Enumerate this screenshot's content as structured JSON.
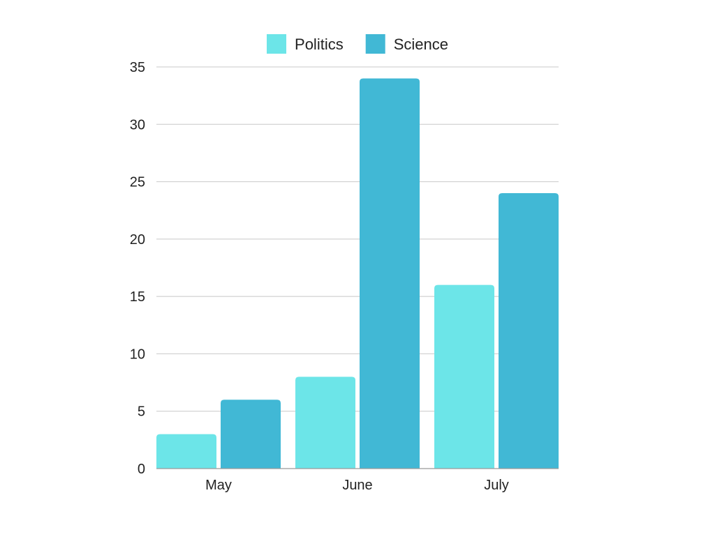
{
  "chart_data": {
    "type": "bar",
    "categories": [
      "May",
      "June",
      "July"
    ],
    "series": [
      {
        "name": "Politics",
        "values": [
          3,
          8,
          16
        ],
        "color": "#6ce5e8"
      },
      {
        "name": "Science",
        "values": [
          6,
          34,
          24
        ],
        "color": "#41b8d5"
      }
    ],
    "ylim": [
      0,
      35
    ],
    "yticks": [
      0,
      5,
      10,
      15,
      20,
      25,
      30,
      35
    ],
    "title": "",
    "xlabel": "",
    "ylabel": "",
    "grid": true,
    "legend_position": "top-center"
  }
}
